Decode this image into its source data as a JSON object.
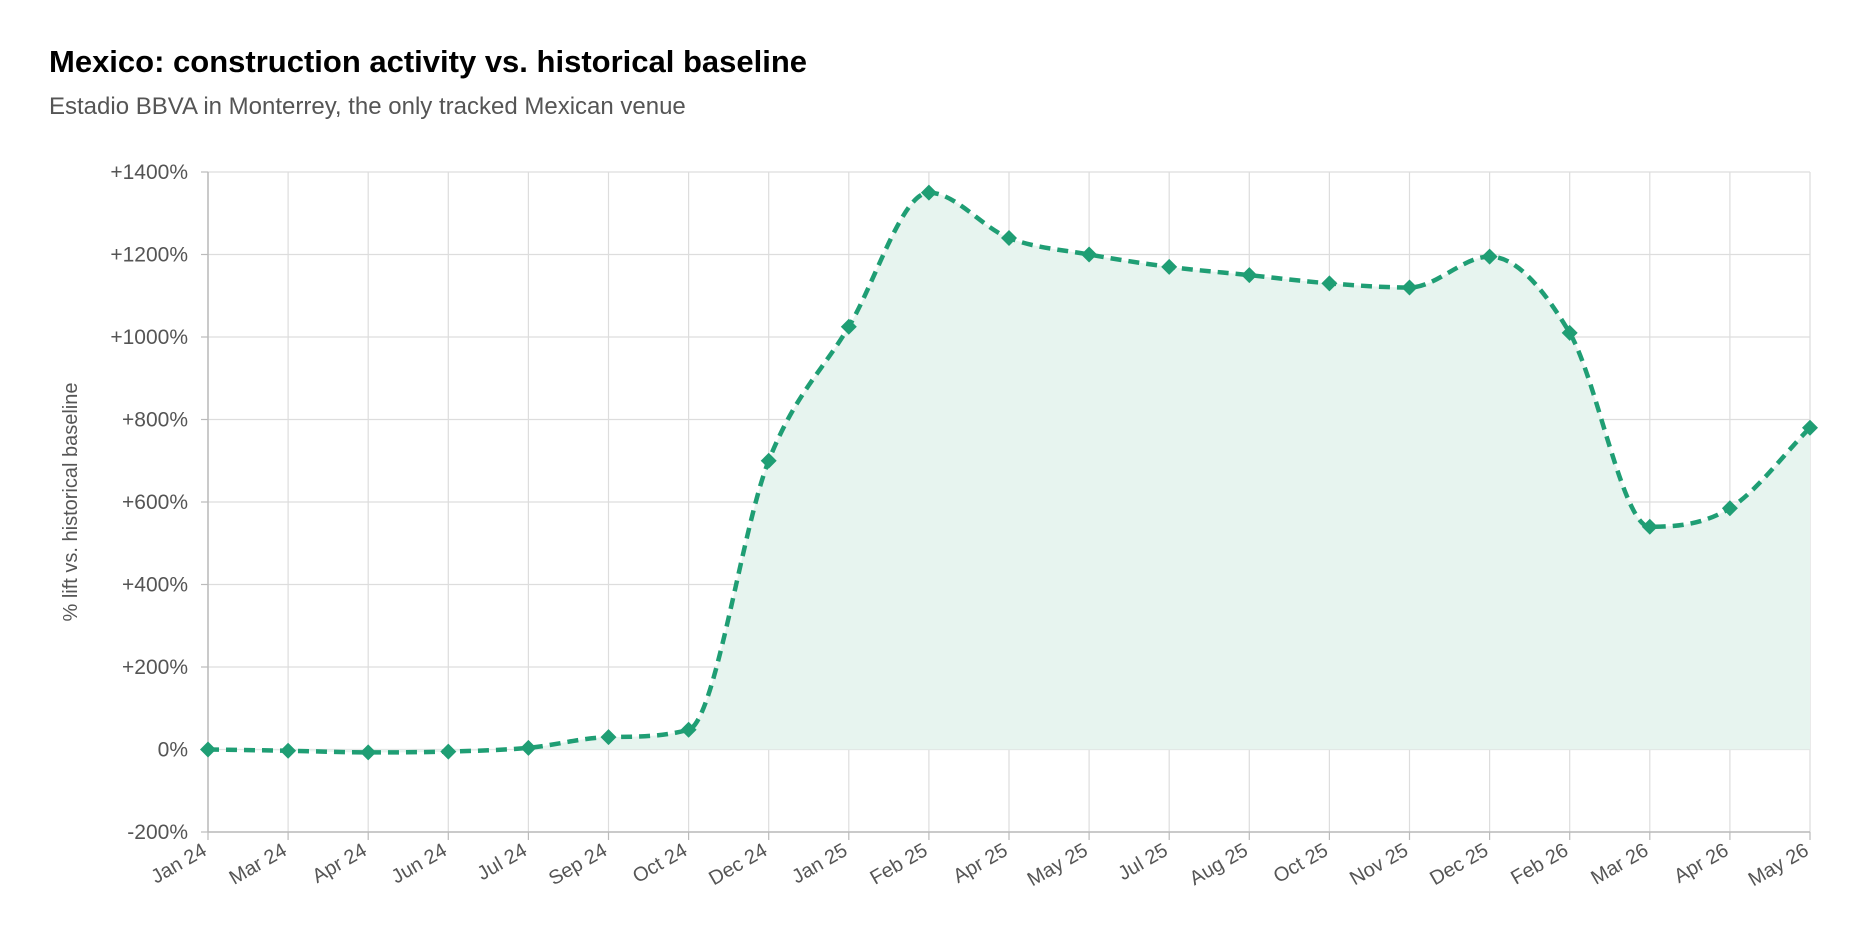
{
  "chart_data": {
    "type": "line",
    "title": "Mexico: construction activity vs. historical baseline",
    "subtitle": "Estadio BBVA in Monterrey, the only tracked Mexican venue",
    "xlabel": "",
    "ylabel": "% lift vs. historical baseline",
    "categories": [
      "Jan 24",
      "Mar 24",
      "Apr 24",
      "Jun 24",
      "Jul 24",
      "Sep 24",
      "Oct 24",
      "Dec 24",
      "Jan 25",
      "Feb 25",
      "Apr 25",
      "May 25",
      "Jul 25",
      "Aug 25",
      "Oct 25",
      "Nov 25",
      "Dec 25",
      "Feb 26",
      "Mar 26",
      "Apr 26",
      "May 26"
    ],
    "series": [
      {
        "values": [
          0,
          -3,
          -7,
          -5,
          4,
          30,
          48,
          700,
          1025,
          1350,
          1240,
          1200,
          1170,
          1150,
          1130,
          1120,
          1195,
          1010,
          540,
          585,
          780
        ]
      }
    ],
    "ylim": [
      -200,
      1400
    ],
    "yticks": [
      -200,
      0,
      200,
      400,
      600,
      800,
      1000,
      1200,
      1400
    ],
    "ytick_labels": [
      "-200%",
      "0%",
      "+200%",
      "+400%",
      "+600%",
      "+800%",
      "+1000%",
      "+1200%",
      "+1400%"
    ],
    "grid": true,
    "legend": "none",
    "colors": {
      "line": "#1f9e74",
      "fill": "#e7f4ef",
      "grid": "#dddddd",
      "axis": "#bbbbbb",
      "tick_text": "#555555"
    }
  }
}
